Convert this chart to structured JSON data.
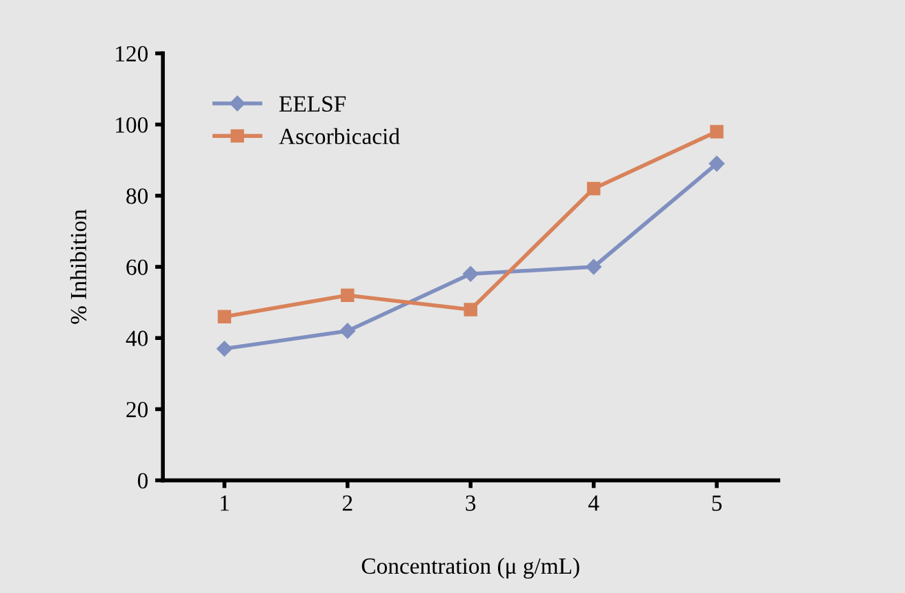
{
  "chart_data": {
    "type": "line",
    "xlabel": "Concentration (μ g/mL)",
    "ylabel": "% Inhibition",
    "x": [
      1,
      2,
      3,
      4,
      5
    ],
    "xlim": [
      0.5,
      5.5
    ],
    "xticks": [
      1,
      2,
      3,
      4,
      5
    ],
    "ylim": [
      0,
      120
    ],
    "yticks": [
      0,
      20,
      40,
      60,
      80,
      100,
      120
    ],
    "series": [
      {
        "name": "EELSF",
        "color": "#7f8fc0",
        "marker": "diamond",
        "values": [
          37,
          42,
          58,
          60,
          89
        ]
      },
      {
        "name": "Ascorbicacid",
        "color": "#d9825a",
        "marker": "square",
        "values": [
          46,
          52,
          48,
          82,
          98
        ]
      }
    ],
    "legend": "top left",
    "grid": false,
    "line_style": "solid"
  }
}
